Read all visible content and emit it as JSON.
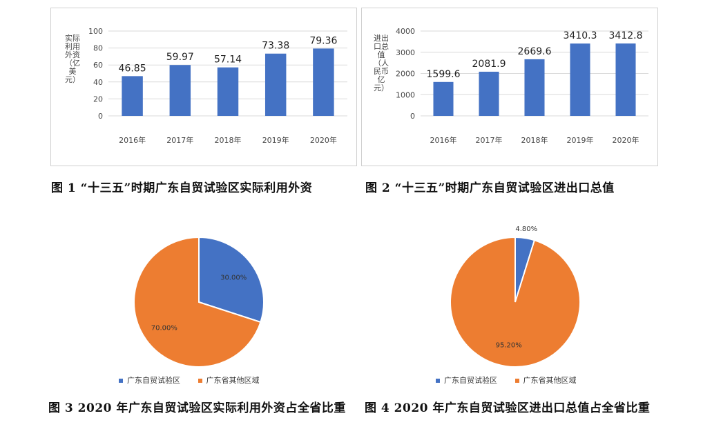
{
  "chart_data": [
    {
      "type": "bar",
      "ylabel": "实际利用外资（亿美元）",
      "categories": [
        "2016年",
        "2017年",
        "2018年",
        "2019年",
        "2020年"
      ],
      "values": [
        46.85,
        59.97,
        57.14,
        73.38,
        79.36
      ],
      "value_labels": [
        "46.85",
        "59.97",
        "57.14",
        "73.38",
        "79.36"
      ],
      "ylim": [
        0,
        100
      ],
      "yticks": [
        "0",
        "20",
        "40",
        "60",
        "80",
        "100"
      ],
      "ytick_values": [
        0,
        20,
        40,
        60,
        80,
        100
      ],
      "color": "#4472C4",
      "grid": true
    },
    {
      "type": "bar",
      "ylabel": "进出口总值（人民币亿元）",
      "categories": [
        "2016年",
        "2017年",
        "2018年",
        "2019年",
        "2020年"
      ],
      "values": [
        1599.6,
        2081.9,
        2669.6,
        3410.3,
        3412.8
      ],
      "value_labels": [
        "1599.6",
        "2081.9",
        "2669.6",
        "3410.3",
        "3412.8"
      ],
      "ylim": [
        0,
        4000
      ],
      "yticks": [
        "0",
        "1000",
        "2000",
        "3000",
        "4000"
      ],
      "ytick_values": [
        0,
        1000,
        2000,
        3000,
        4000
      ],
      "color": "#4472C4",
      "grid": true
    },
    {
      "type": "pie",
      "slices": [
        {
          "name": "广东自贸试验区",
          "value": 30.0,
          "label": "30.00%",
          "color": "#4472C4"
        },
        {
          "name": "广东省其他区域",
          "value": 70.0,
          "label": "70.00%",
          "color": "#ED7D31"
        }
      ],
      "legend_position": "bottom"
    },
    {
      "type": "pie",
      "slices": [
        {
          "name": "广东自贸试验区",
          "value": 4.8,
          "label": "4.80%",
          "color": "#4472C4"
        },
        {
          "name": "广东省其他区域",
          "value": 95.2,
          "label": "95.20%",
          "color": "#ED7D31"
        }
      ],
      "legend_position": "bottom"
    }
  ],
  "captions": {
    "fig1": "图 1 “十三五”时期广东自贸试验区实际利用外资",
    "fig2": "图 2 “十三五”时期广东自贸试验区进出口总值",
    "fig3": "图 3 2020 年广东自贸试验区实际利用外资占全省比重",
    "fig4": "图 4 2020 年广东自贸试验区进出口总值占全省比重"
  }
}
